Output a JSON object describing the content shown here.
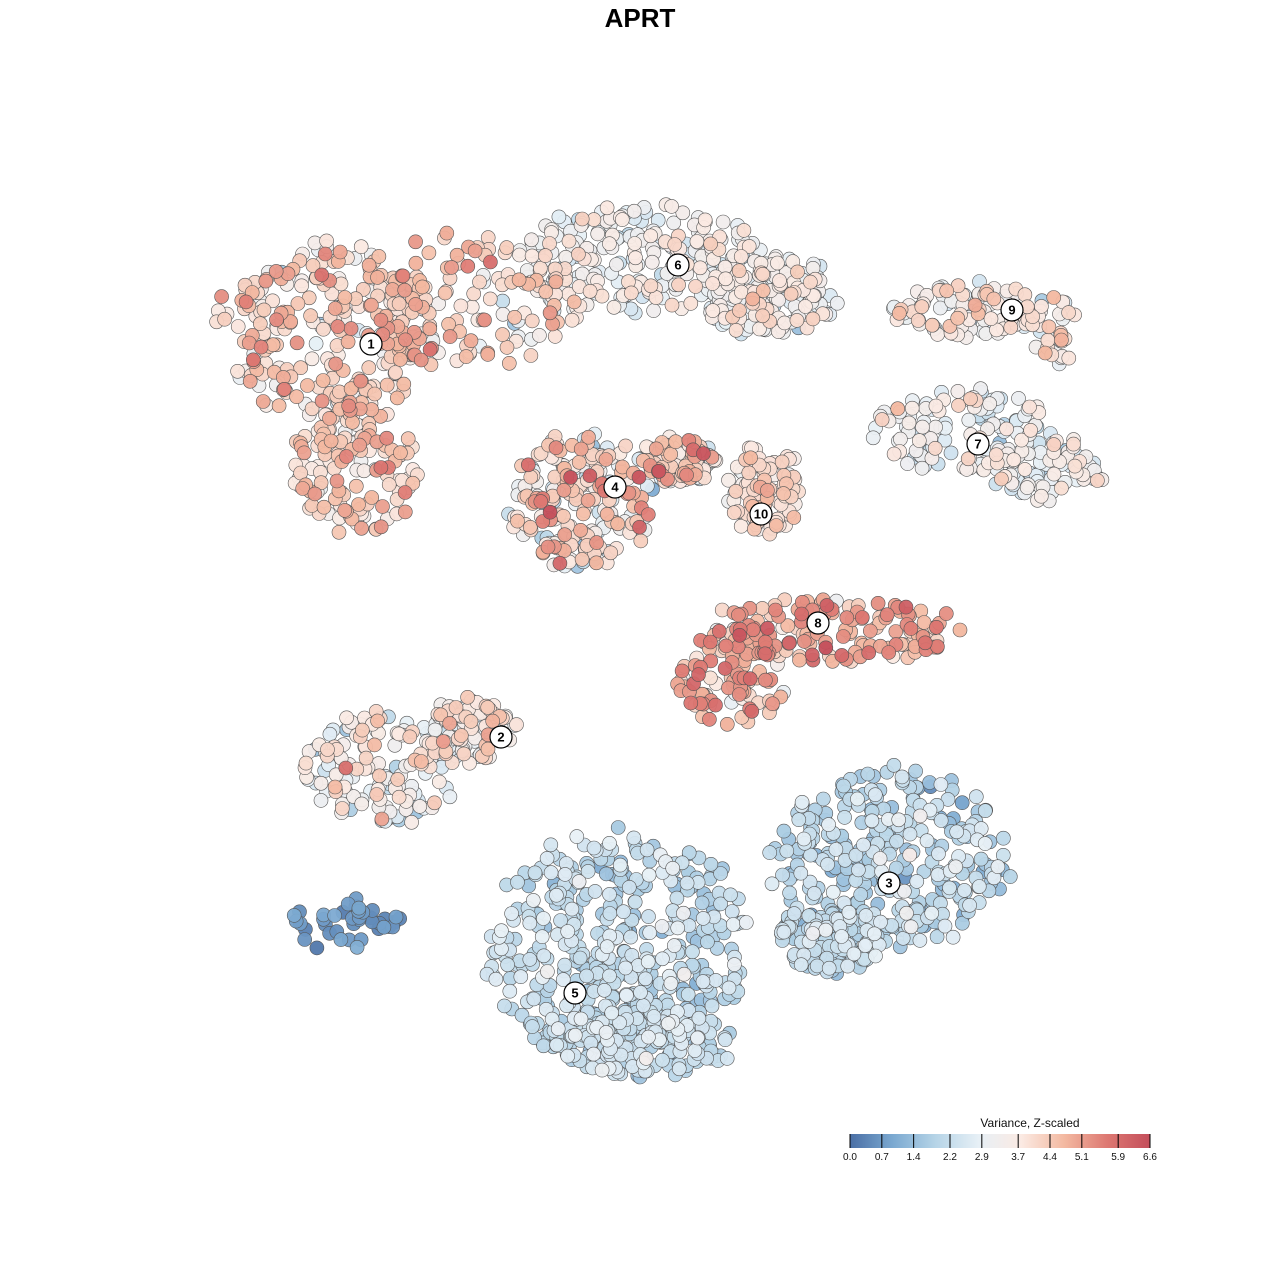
{
  "chart_data": {
    "type": "scatter",
    "title": "APRT",
    "xlabel": "",
    "ylabel": "",
    "grid": false,
    "legend": {
      "title": "Variance, Z-scaled",
      "placement": "bottom-right",
      "range": [
        0.0,
        6.6
      ],
      "ticks": [
        "0.0",
        "0.7",
        "1.4",
        "2.2",
        "2.9",
        "3.7",
        "4.4",
        "5.1",
        "5.9",
        "6.6"
      ],
      "colors": [
        "#4a6fa5",
        "#7ba9d1",
        "#b6d4e7",
        "#e7f0f6",
        "#fbeae3",
        "#f3b9a1",
        "#dd7872",
        "#c44e5b"
      ]
    },
    "clusters": [
      {
        "label": "1",
        "value": 4.2,
        "spread": 1.1
      },
      {
        "label": "2",
        "value": 3.4,
        "spread": 1.2
      },
      {
        "label": "3",
        "value": 2.0,
        "spread": 0.8
      },
      {
        "label": "4",
        "value": 3.8,
        "spread": 1.6
      },
      {
        "label": "5",
        "value": 2.1,
        "spread": 0.7
      },
      {
        "label": "6",
        "value": 3.2,
        "spread": 0.9
      },
      {
        "label": "7",
        "value": 3.1,
        "spread": 1.0
      },
      {
        "label": "8",
        "value": 4.9,
        "spread": 1.1
      },
      {
        "label": "9",
        "value": 3.6,
        "spread": 1.1
      },
      {
        "label": "10",
        "value": 4.0,
        "spread": 0.8
      }
    ],
    "outlier_groups": [
      {
        "name": "isolated-group",
        "value": 0.6,
        "spread": 0.4
      }
    ]
  }
}
